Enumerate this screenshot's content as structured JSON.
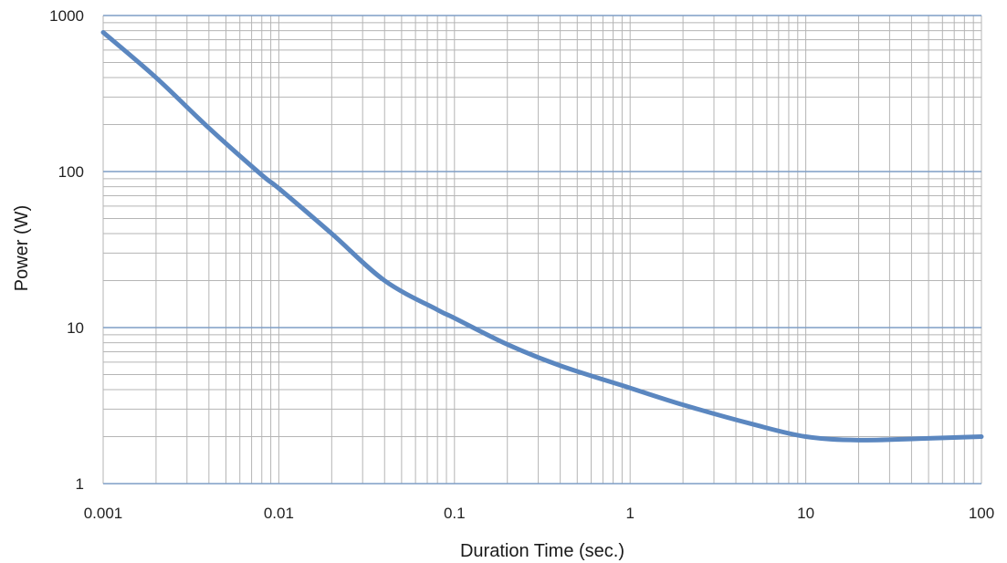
{
  "chart_data": {
    "type": "line",
    "title": "",
    "xlabel": "Duration Time (sec.)",
    "ylabel": "Power (W)",
    "x_scale": "log",
    "y_scale": "log",
    "xlim": [
      0.001,
      100
    ],
    "ylim": [
      1,
      1000
    ],
    "grid": true,
    "x_ticks": [
      "0.001",
      "0.01",
      "0.1",
      "1",
      "10",
      "100"
    ],
    "y_ticks": [
      "1",
      "10",
      "100",
      "1000"
    ],
    "line_color": "#5b87c0",
    "series": [
      {
        "x": [
          0.001,
          0.002,
          0.004,
          0.008,
          0.01,
          0.02,
          0.04,
          0.08,
          0.1,
          0.2,
          0.4,
          1,
          2,
          5,
          10,
          20,
          50,
          100
        ],
        "values": [
          780,
          400,
          190,
          95,
          78,
          40,
          20,
          13,
          11.5,
          7.8,
          5.7,
          4.1,
          3.2,
          2.4,
          2.0,
          1.9,
          1.95,
          2.0
        ]
      }
    ]
  }
}
